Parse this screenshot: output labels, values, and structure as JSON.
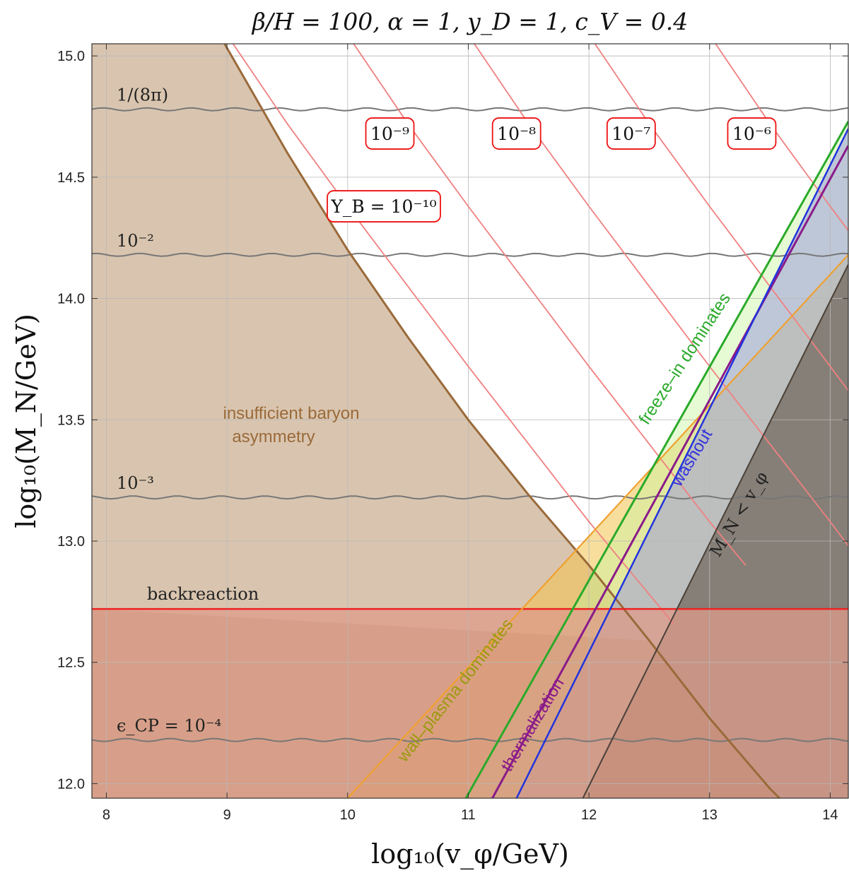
{
  "chart_data": {
    "type": "line",
    "title": "β/H = 100, α = 1, y_D = 1, c_V = 0.4",
    "xlabel": "log₁₀(v_φ/GeV)",
    "ylabel": "log₁₀(M_N/GeV)",
    "xlim": [
      7.88,
      14.15
    ],
    "ylim": [
      11.94,
      15.05
    ],
    "xticks": [
      8,
      9,
      10,
      11,
      12,
      13,
      14
    ],
    "yticks": [
      12.0,
      12.5,
      13.0,
      13.5,
      14.0,
      14.5,
      15.0
    ],
    "xtick_labels": [
      "8",
      "9",
      "10",
      "11",
      "12",
      "13",
      "14"
    ],
    "ytick_labels": [
      "12.0",
      "12.5",
      "13.0",
      "13.5",
      "14.0",
      "14.5",
      "15.0"
    ],
    "grid": true,
    "epsilon_cp_contours": [
      {
        "label": "1/(8π)",
        "y": 14.78
      },
      {
        "label": "10⁻²",
        "y": 14.18
      },
      {
        "label": "10⁻³",
        "y": 13.18
      },
      {
        "label": "ϵ_CP = 10⁻⁴",
        "y": 12.18
      }
    ],
    "yb_contours": [
      {
        "label": "Y_B = 10⁻¹⁰",
        "points": [
          [
            9.05,
            15.05
          ],
          [
            9.5,
            14.72
          ],
          [
            10.0,
            14.38
          ],
          [
            10.5,
            14.05
          ],
          [
            11.0,
            13.72
          ],
          [
            11.5,
            13.4
          ],
          [
            12.0,
            13.08
          ],
          [
            12.5,
            12.78
          ],
          [
            12.7,
            12.66
          ]
        ]
      },
      {
        "label": "10⁻⁹",
        "points": [
          [
            10.05,
            15.05
          ],
          [
            10.5,
            14.72
          ],
          [
            11.0,
            14.38
          ],
          [
            11.5,
            14.05
          ],
          [
            12.0,
            13.72
          ],
          [
            12.5,
            13.4
          ],
          [
            13.0,
            13.08
          ],
          [
            13.3,
            12.9
          ]
        ]
      },
      {
        "label": "10⁻⁸",
        "points": [
          [
            11.05,
            15.05
          ],
          [
            11.5,
            14.72
          ],
          [
            12.0,
            14.38
          ],
          [
            12.5,
            14.05
          ],
          [
            13.0,
            13.72
          ],
          [
            13.5,
            13.4
          ],
          [
            14.0,
            13.08
          ],
          [
            14.15,
            12.98
          ]
        ]
      },
      {
        "label": "10⁻⁷",
        "points": [
          [
            12.05,
            15.05
          ],
          [
            12.5,
            14.72
          ],
          [
            13.0,
            14.38
          ],
          [
            13.5,
            14.05
          ],
          [
            14.0,
            13.72
          ],
          [
            14.15,
            13.62
          ]
        ]
      },
      {
        "label": "10⁻⁶",
        "points": [
          [
            13.05,
            15.05
          ],
          [
            13.5,
            14.72
          ],
          [
            14.0,
            14.38
          ],
          [
            14.15,
            14.28
          ]
        ]
      }
    ],
    "baryon_boundary": {
      "points": [
        [
          8.98,
          15.05
        ],
        [
          9.5,
          14.6
        ],
        [
          10.0,
          14.2
        ],
        [
          10.5,
          13.84
        ],
        [
          11.0,
          13.5
        ],
        [
          11.5,
          13.19
        ],
        [
          12.0,
          12.9
        ],
        [
          12.5,
          12.59
        ],
        [
          13.0,
          12.27
        ],
        [
          13.5,
          11.98
        ],
        [
          13.58,
          11.94
        ]
      ]
    },
    "backreaction_y": 12.72,
    "lines": [
      {
        "name": "wall-plasma boundary",
        "p1": [
          10.0,
          11.94
        ],
        "p2": [
          14.15,
          14.18
        ]
      },
      {
        "name": "freeze-in boundary",
        "p1": [
          10.98,
          11.94
        ],
        "p2": [
          14.15,
          14.73
        ]
      },
      {
        "name": "thermalization boundary",
        "p1": [
          11.2,
          11.94
        ],
        "p2": [
          14.15,
          14.63
        ]
      },
      {
        "name": "washout boundary",
        "p1": [
          11.4,
          11.94
        ],
        "p2": [
          14.15,
          14.7
        ]
      },
      {
        "name": "M_N = v_phi boundary",
        "p1": [
          11.95,
          11.94
        ],
        "p2": [
          14.15,
          14.14
        ]
      }
    ],
    "annotations": {
      "insufficient": [
        "insufficient baryon",
        "asymmetry"
      ],
      "backreaction": "backreaction",
      "wall_plasma": "wall–plasma dominates",
      "freeze_in": "freeze–in dominates",
      "thermalization": "thermalization",
      "washout": "washout",
      "mn_lt_vphi": "M_N < v_φ"
    },
    "colors": {
      "baryon_fill": "#d7c2ab",
      "baryon_line": "#9a6a3a",
      "backreaction_fill": "#dd9b8a",
      "backreaction_line": "#ee2222",
      "wall_fill": "#f2c24c",
      "freeze_fill": "#c8f5a0",
      "freeze_line": "#2aaa2a",
      "thermal_line": "#8a1a8a",
      "washout_fill": "#9c9cd8",
      "washout_line": "#2233dd",
      "mn_fill": "#6d6458",
      "yb_line": "#f08080",
      "contour_line": "#777777"
    }
  }
}
